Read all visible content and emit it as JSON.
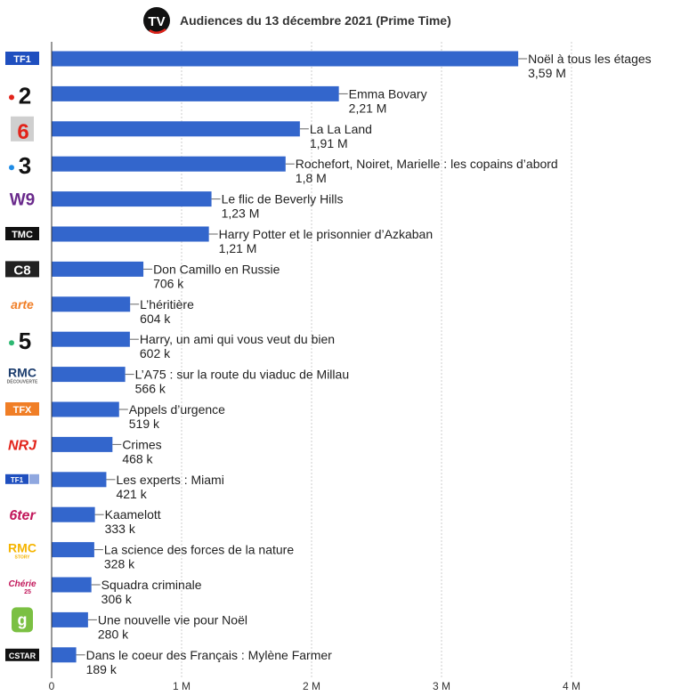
{
  "header": {
    "logo_text": "TV",
    "title": "Audiences du 13 décembre 2021 (Prime Time)"
  },
  "colors": {
    "bar": "#3366cc",
    "axis": "#333333",
    "grid": "#cccccc",
    "title": "#333333",
    "logo_bg": "#111111",
    "logo_accent": "#e2231a"
  },
  "chart_data": {
    "type": "bar",
    "orientation": "horizontal",
    "title": "Audiences du 13 décembre 2021 (Prime Time)",
    "xlim": [
      0,
      4800000
    ],
    "x_ticks": [
      {
        "value": 0,
        "label": "0"
      },
      {
        "value": 1000000,
        "label": "1 M"
      },
      {
        "value": 2000000,
        "label": "2 M"
      },
      {
        "value": 3000000,
        "label": "3 M"
      },
      {
        "value": 4000000,
        "label": "4 M"
      }
    ],
    "grid": true,
    "series": [
      {
        "values": [
          3590000,
          2210000,
          1910000,
          1800000,
          1230000,
          1210000,
          706000,
          604000,
          602000,
          566000,
          519000,
          468000,
          421000,
          333000,
          328000,
          306000,
          280000,
          189000
        ]
      }
    ],
    "rows": [
      {
        "channel": "TF1",
        "channel_icon": "tf1-logo",
        "program": "Noël à tous les étages",
        "value": 3590000,
        "value_label": "3,59 M"
      },
      {
        "channel": "2",
        "channel_icon": "france2-logo",
        "program": "Emma Bovary",
        "value": 2210000,
        "value_label": "2,21 M"
      },
      {
        "channel": "6",
        "channel_icon": "m6-logo",
        "program": "La La Land",
        "value": 1910000,
        "value_label": "1,91 M"
      },
      {
        "channel": "3",
        "channel_icon": "france3-logo",
        "program": "Rochefort, Noiret, Marielle : les copains d’abord",
        "value": 1800000,
        "value_label": "1,8 M"
      },
      {
        "channel": "W9",
        "channel_icon": "w9-logo",
        "program": "Le flic de Beverly Hills",
        "value": 1230000,
        "value_label": "1,23 M"
      },
      {
        "channel": "TMC",
        "channel_icon": "tmc-logo",
        "program": "Harry Potter et le prisonnier d’Azkaban",
        "value": 1210000,
        "value_label": "1,21 M"
      },
      {
        "channel": "C8",
        "channel_icon": "c8-logo",
        "program": "Don Camillo en Russie",
        "value": 706000,
        "value_label": "706 k"
      },
      {
        "channel": "arte",
        "channel_icon": "arte-logo",
        "program": "L’héritière",
        "value": 604000,
        "value_label": "604 k"
      },
      {
        "channel": "5",
        "channel_icon": "france5-logo",
        "program": "Harry, un ami qui vous veut du bien",
        "value": 602000,
        "value_label": "602 k"
      },
      {
        "channel": "RMC",
        "channel_icon": "rmc-decouverte-logo",
        "program": "L’A75 : sur la route du viaduc de Millau",
        "value": 566000,
        "value_label": "566 k"
      },
      {
        "channel": "TFX",
        "channel_icon": "tfx-logo",
        "program": "Appels d’urgence",
        "value": 519000,
        "value_label": "519 k"
      },
      {
        "channel": "NRJ 12",
        "channel_icon": "nrj12-logo",
        "program": "Crimes",
        "value": 468000,
        "value_label": "468 k"
      },
      {
        "channel": "TF1",
        "channel_icon": "tf1-series-films-logo",
        "program": "Les experts : Miami",
        "value": 421000,
        "value_label": "421 k"
      },
      {
        "channel": "6ter",
        "channel_icon": "6ter-logo",
        "program": "Kaamelott",
        "value": 333000,
        "value_label": "333 k"
      },
      {
        "channel": "RMC",
        "channel_icon": "rmc-story-logo",
        "program": "La science des forces de la nature",
        "value": 328000,
        "value_label": "328 k"
      },
      {
        "channel": "Chérie 25",
        "channel_icon": "cherie25-logo",
        "program": "Squadra criminale",
        "value": 306000,
        "value_label": "306 k"
      },
      {
        "channel": "gulli",
        "channel_icon": "gulli-logo",
        "program": "Une nouvelle vie pour Noël",
        "value": 280000,
        "value_label": "280 k"
      },
      {
        "channel": "CSTAR",
        "channel_icon": "cstar-logo",
        "program": "Dans le coeur des Français : Mylène Farmer",
        "value": 189000,
        "value_label": "189 k"
      }
    ]
  }
}
